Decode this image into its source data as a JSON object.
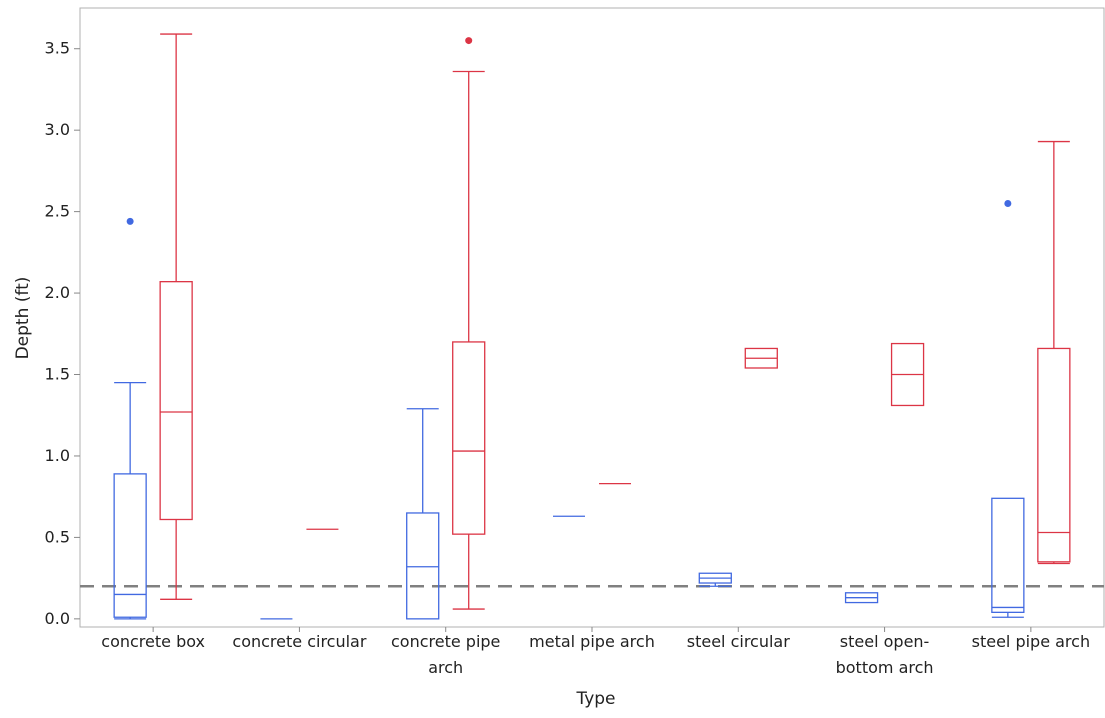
{
  "chart_data": {
    "type": "box",
    "xlabel": "Type",
    "ylabel": "Depth (ft)",
    "ylim": [
      -0.05,
      3.75
    ],
    "yticks": [
      0.0,
      0.5,
      1.0,
      1.5,
      2.0,
      2.5,
      3.0,
      3.5
    ],
    "ytick_labels": [
      "0.0",
      "0.5",
      "1.0",
      "1.5",
      "2.0",
      "2.5",
      "3.0",
      "3.5"
    ],
    "categories": [
      [
        "concrete box"
      ],
      [
        "concrete circular"
      ],
      [
        "concrete pipe",
        "arch"
      ],
      [
        "metal pipe arch"
      ],
      [
        "steel circular"
      ],
      [
        "steel open-",
        "bottom arch"
      ],
      [
        "steel pipe arch"
      ]
    ],
    "reference_line": {
      "y": 0.2,
      "style": "dashed",
      "color": "#808080"
    },
    "series": [
      {
        "color": "#4169e1",
        "boxes": [
          {
            "min": 0.0,
            "q1": 0.01,
            "median": 0.15,
            "q3": 0.89,
            "max": 1.45,
            "outliers": [
              2.44
            ]
          },
          {
            "min": 0.0,
            "q1": 0.0,
            "median": 0.0,
            "q3": 0.0,
            "max": 0.0,
            "outliers": []
          },
          {
            "min": 0.0,
            "q1": 0.0,
            "median": 0.32,
            "q3": 0.65,
            "max": 1.29,
            "outliers": []
          },
          {
            "min": 0.63,
            "q1": 0.63,
            "median": 0.63,
            "q3": 0.63,
            "max": 0.63,
            "outliers": []
          },
          {
            "min": 0.2,
            "q1": 0.22,
            "median": 0.25,
            "q3": 0.28,
            "max": 0.28,
            "outliers": []
          },
          {
            "min": 0.1,
            "q1": 0.1,
            "median": 0.13,
            "q3": 0.16,
            "max": 0.16,
            "outliers": []
          },
          {
            "min": 0.01,
            "q1": 0.04,
            "median": 0.07,
            "q3": 0.74,
            "max": 0.74,
            "outliers": [
              2.55
            ]
          }
        ]
      },
      {
        "color": "#dc3545",
        "boxes": [
          {
            "min": 0.12,
            "q1": 0.61,
            "median": 1.27,
            "q3": 2.07,
            "max": 3.59,
            "outliers": []
          },
          {
            "min": 0.55,
            "q1": 0.55,
            "median": 0.55,
            "q3": 0.55,
            "max": 0.55,
            "outliers": []
          },
          {
            "min": 0.06,
            "q1": 0.52,
            "median": 1.03,
            "q3": 1.7,
            "max": 3.36,
            "outliers": [
              3.55
            ]
          },
          {
            "min": 0.83,
            "q1": 0.83,
            "median": 0.83,
            "q3": 0.83,
            "max": 0.83,
            "outliers": []
          },
          {
            "min": 1.54,
            "q1": 1.54,
            "median": 1.6,
            "q3": 1.66,
            "max": 1.66,
            "outliers": []
          },
          {
            "min": 1.31,
            "q1": 1.31,
            "median": 1.5,
            "q3": 1.69,
            "max": 1.69,
            "outliers": []
          },
          {
            "min": 0.34,
            "q1": 0.35,
            "median": 0.53,
            "q3": 1.66,
            "max": 2.93,
            "outliers": []
          }
        ]
      }
    ],
    "grid": false,
    "legend": "none"
  }
}
